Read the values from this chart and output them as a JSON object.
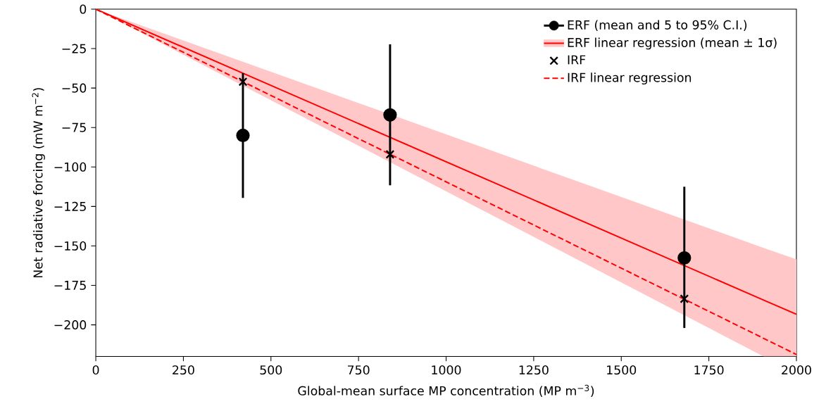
{
  "chart_data": {
    "type": "line",
    "xlabel": "Global-mean surface MP concentration (MP m$^{−3}$)",
    "ylabel": "Net radiative forcing (mW m$^{−2}$)",
    "xlim": [
      0,
      2000
    ],
    "ylim": [
      -220,
      0
    ],
    "xticks": [
      0,
      250,
      500,
      750,
      1000,
      1250,
      1500,
      1750,
      2000
    ],
    "yticks": [
      {
        "value": 0,
        "label": "0"
      },
      {
        "value": -25,
        "label": "−25"
      },
      {
        "value": -50,
        "label": "−50"
      },
      {
        "value": -75,
        "label": "−75"
      },
      {
        "value": -100,
        "label": "−100"
      },
      {
        "value": -125,
        "label": "−125"
      },
      {
        "value": -150,
        "label": "−150"
      },
      {
        "value": -175,
        "label": "−175"
      },
      {
        "value": -200,
        "label": "−200"
      }
    ],
    "legend": "top right",
    "series": [
      {
        "name": "ERF (mean and 5 to 95% C.I.)",
        "type": "scatter",
        "marker": "circle",
        "color": "#000000",
        "x": [
          420,
          840,
          1680
        ],
        "values": [
          -80,
          -67,
          -157.6
        ],
        "errors": [
          [
            -119.6,
            -40.6
          ],
          [
            -111.6,
            -22.3
          ],
          [
            -202,
            -112.5
          ]
        ]
      },
      {
        "name": "ERF linear regression (mean ± 1σ)",
        "color": "#ff0000",
        "line_style": "solid",
        "x": [
          0,
          1906,
          2000
        ],
        "values": [
          0,
          -184.3,
          -193.3
        ],
        "lower": [
          0,
          -220,
          -220
        ],
        "upper": [
          0,
          -151.2,
          -158.5
        ]
      },
      {
        "name": "IRF",
        "type": "scatter",
        "marker": "cross",
        "color": "#000000",
        "x": [
          420,
          840,
          1680
        ],
        "values": [
          -46,
          -92,
          -183.5
        ]
      },
      {
        "name": "IRF linear regression",
        "color": "#ff0000",
        "line_style": "dashed",
        "x": [
          0,
          2000
        ],
        "values": [
          0,
          -218.8
        ]
      }
    ]
  }
}
